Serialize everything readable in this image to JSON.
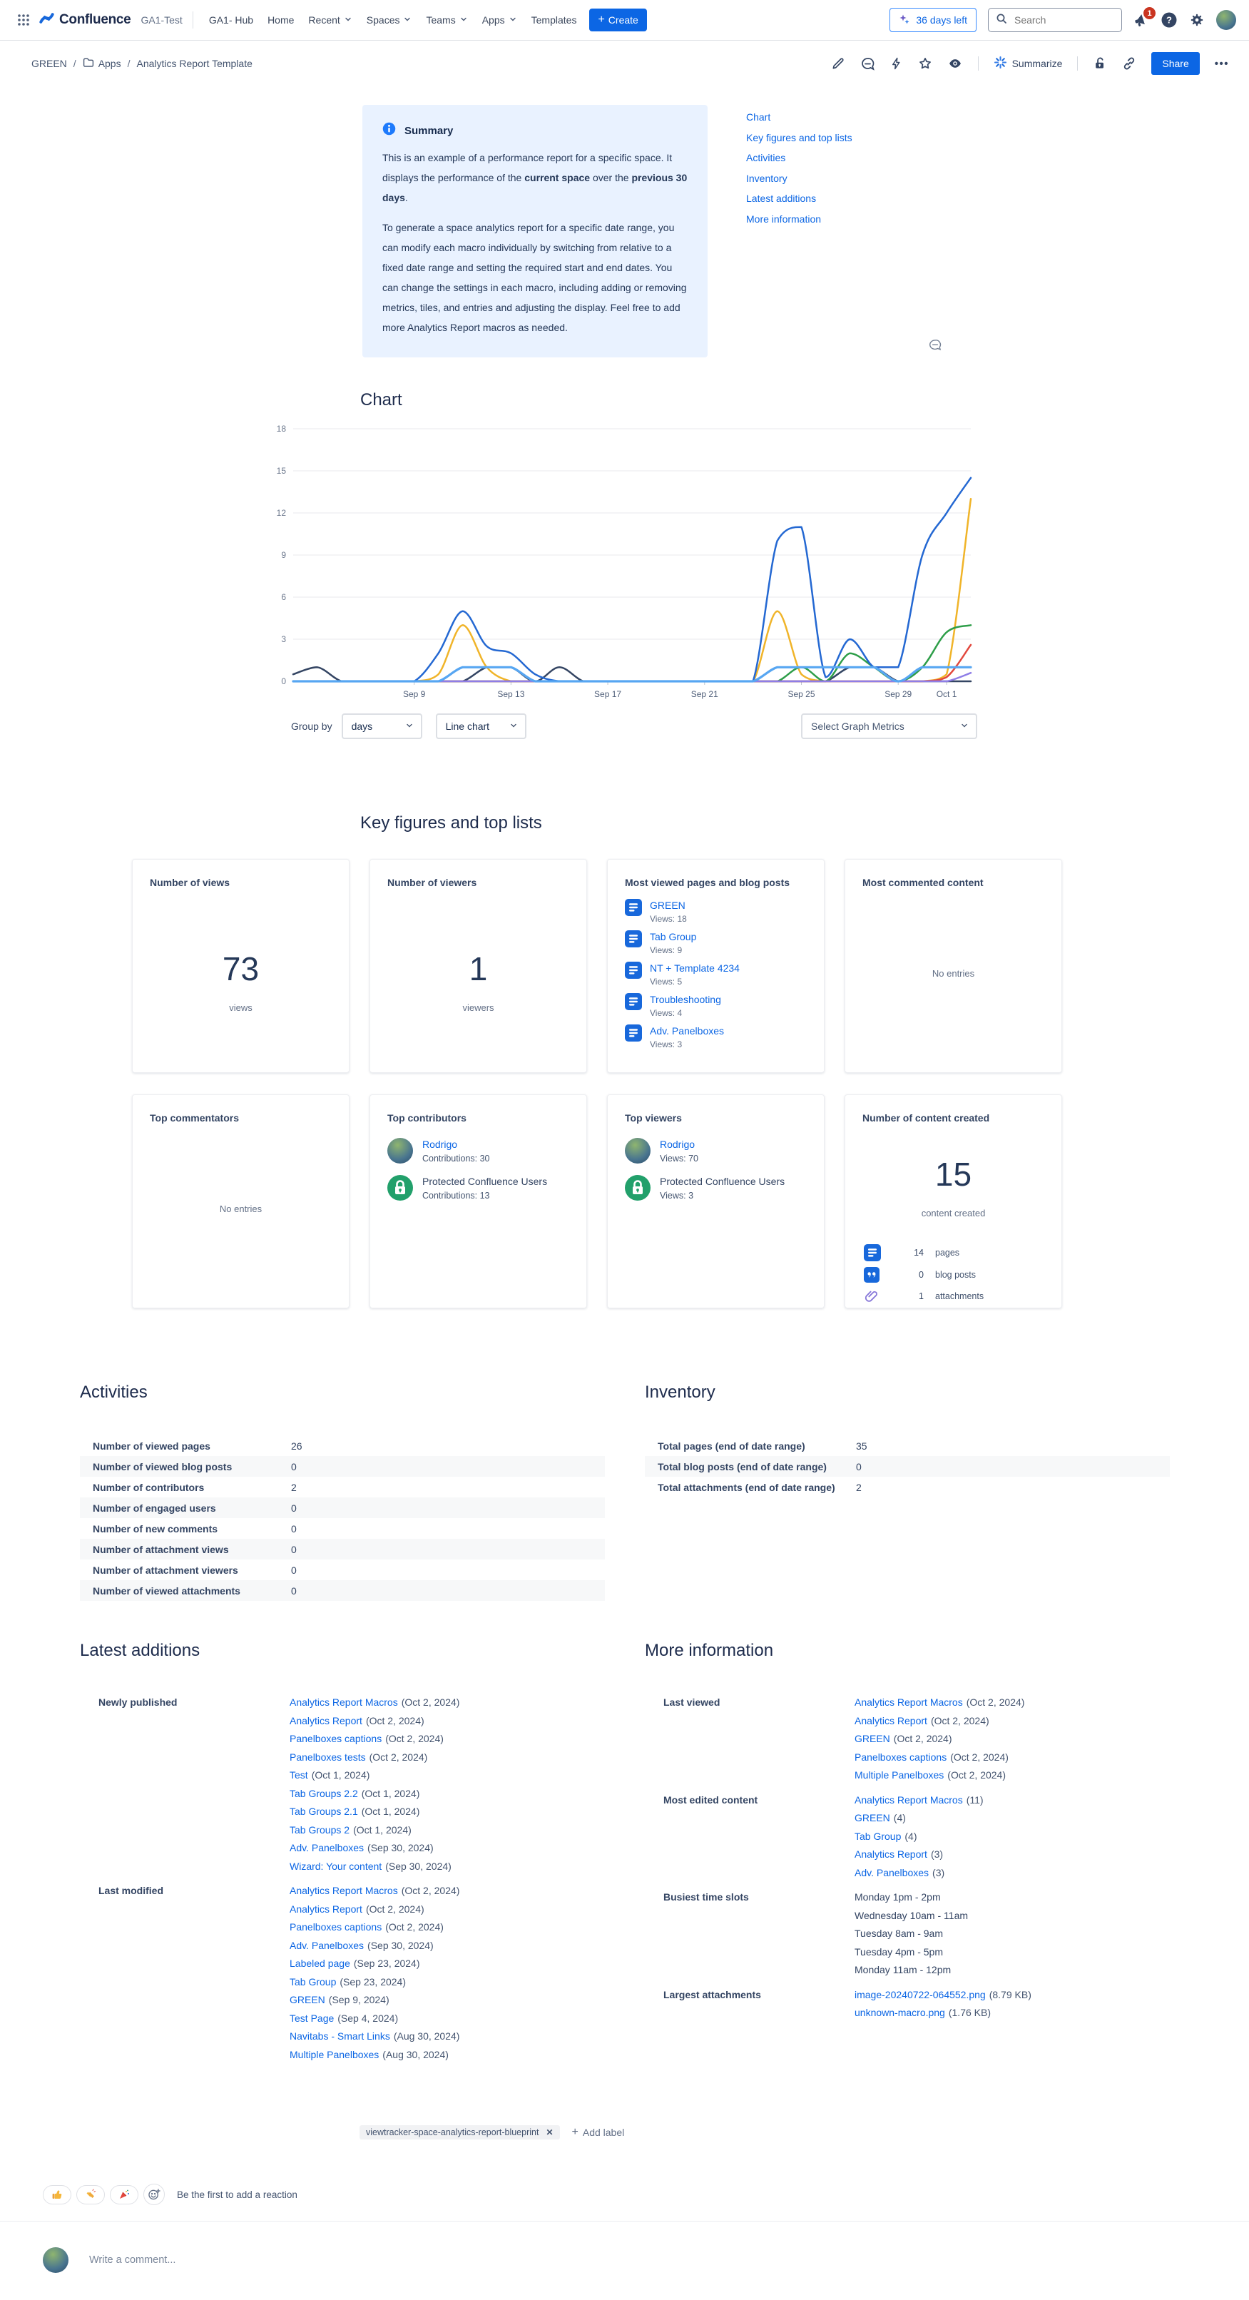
{
  "nav": {
    "product": "Confluence",
    "site": "GA1-Test",
    "items": [
      {
        "label": "GA1- Hub",
        "chevron": false
      },
      {
        "label": "Home",
        "chevron": false
      },
      {
        "label": "Recent",
        "chevron": true
      },
      {
        "label": "Spaces",
        "chevron": true
      },
      {
        "label": "Teams",
        "chevron": true
      },
      {
        "label": "Apps",
        "chevron": true
      },
      {
        "label": "Templates",
        "chevron": false
      }
    ],
    "create_label": "Create",
    "trial_label": "36 days left",
    "search_placeholder": "Search",
    "notification_count": "1"
  },
  "breadcrumb": {
    "items": [
      "GREEN",
      "Apps",
      "Analytics Report Template"
    ]
  },
  "page_actions": {
    "summarize_label": "Summarize",
    "share_label": "Share"
  },
  "summary_panel": {
    "title": "Summary",
    "p1_pre": "This is an example of a performance report for a specific space. It displays the performance of the ",
    "p1_bold1": "current space",
    "p1_mid": " over the ",
    "p1_bold2": "previous 30 days",
    "p1_end": ".",
    "p2": "To generate a space analytics report for a specific date range, you can modify each macro individually by switching from relative to a fixed date range and setting the required start and end dates. You can change the settings in each macro, including adding or removing metrics, tiles, and entries and adjusting the display. Feel free to add more Analytics Report macros as needed."
  },
  "toc": {
    "links": [
      "Chart",
      "Key figures and top lists",
      "Activities",
      "Inventory",
      "Latest additions",
      "More information"
    ]
  },
  "chart_section": {
    "title": "Chart",
    "group_by_label": "Group by",
    "group_by_value": "days",
    "chart_type_value": "Line chart",
    "metrics_placeholder": "Select Graph Metrics"
  },
  "chart_data": {
    "type": "line",
    "x_start": "Sep 4, 2024",
    "x_end": "Oct 2, 2024",
    "x_tick_labels": [
      "Sep 9",
      "Sep 13",
      "Sep 17",
      "Sep 21",
      "Sep 25",
      "Sep 29",
      "Oct 1"
    ],
    "x_tick_indices": [
      5,
      9,
      13,
      17,
      21,
      25,
      27
    ],
    "y_ticks": [
      0,
      3,
      6,
      9,
      12,
      15,
      18
    ],
    "ylim": [
      0,
      18
    ],
    "grid": true,
    "legend": "none",
    "series": [
      {
        "name": "dark-navy",
        "color": "#344563",
        "width": 2.5,
        "values": [
          0.5,
          1,
          0,
          0,
          0,
          0,
          0,
          0,
          1,
          1,
          0,
          1,
          0,
          0,
          0,
          0,
          0,
          0,
          0,
          0,
          0,
          0,
          0,
          1,
          1,
          0,
          0,
          0,
          0
        ]
      },
      {
        "name": "yellow",
        "color": "#F0B429",
        "width": 2.5,
        "values": [
          0,
          0,
          0,
          0,
          0,
          0,
          0.5,
          4,
          1,
          0,
          0,
          0,
          0,
          0,
          0,
          0,
          0,
          0,
          0,
          0,
          5,
          0.5,
          0,
          0,
          0,
          0,
          0,
          0.5,
          13
        ]
      },
      {
        "name": "green",
        "color": "#2E9E49",
        "width": 2.5,
        "values": [
          0,
          0,
          0,
          0,
          0,
          0,
          0,
          0,
          0,
          0,
          0,
          0,
          0,
          0,
          0,
          0,
          0,
          0,
          0,
          0,
          0,
          1,
          0,
          2,
          1,
          0,
          1,
          3.5,
          4
        ]
      },
      {
        "name": "red",
        "color": "#E2483D",
        "width": 2.5,
        "values": [
          0,
          0,
          0,
          0,
          0,
          0,
          0,
          0,
          0,
          0,
          0,
          0,
          0,
          0,
          0,
          0,
          0,
          0,
          0,
          0,
          0,
          0,
          0,
          0,
          0,
          0,
          0,
          0.3,
          2.6
        ]
      },
      {
        "name": "purple",
        "color": "#8F7EE7",
        "width": 2.5,
        "values": [
          0,
          0,
          0,
          0,
          0,
          0,
          0,
          0,
          0,
          0,
          0,
          0,
          0,
          0,
          0,
          0,
          0,
          0,
          0,
          0,
          0,
          0,
          0,
          0,
          0,
          0,
          0,
          0,
          0.6
        ]
      },
      {
        "name": "blue",
        "color": "#2468D2",
        "width": 2.5,
        "values": [
          0,
          0,
          0,
          0,
          0,
          0,
          2,
          5,
          2.5,
          2,
          0.5,
          0,
          0,
          0,
          0,
          0,
          0,
          0,
          0,
          0,
          10,
          11,
          0.3,
          3,
          1,
          1,
          9,
          12,
          14.5
        ]
      },
      {
        "name": "light-blue",
        "color": "#57A6F2",
        "width": 3.2,
        "values": [
          0,
          0,
          0,
          0,
          0,
          0,
          0,
          1,
          1,
          1,
          0,
          0,
          0,
          0,
          0,
          0,
          0,
          0,
          0,
          0,
          1,
          1,
          1,
          1,
          1,
          0,
          1,
          1,
          1
        ]
      }
    ]
  },
  "key_figures": {
    "title": "Key figures and top lists",
    "views": {
      "title": "Number of views",
      "value": "73",
      "unit": "views"
    },
    "viewers": {
      "title": "Number of viewers",
      "value": "1",
      "unit": "viewers"
    },
    "most_viewed": {
      "title": "Most viewed pages and blog posts",
      "items": [
        {
          "title": "GREEN",
          "sub": "Views: 18"
        },
        {
          "title": "Tab Group",
          "sub": "Views: 9"
        },
        {
          "title": "NT + Template 4234",
          "sub": "Views: 5"
        },
        {
          "title": "Troubleshooting",
          "sub": "Views: 4"
        },
        {
          "title": "Adv. Panelboxes",
          "sub": "Views: 3"
        }
      ]
    },
    "most_commented": {
      "title": "Most commented content",
      "empty": "No entries"
    },
    "top_commentators": {
      "title": "Top commentators",
      "empty": "No entries"
    },
    "top_contributors": {
      "title": "Top contributors",
      "entries": [
        {
          "name": "Rodrigo",
          "sub": "Contributions: 30",
          "avatar": "photo",
          "link": true
        },
        {
          "name": "Protected Confluence Users",
          "sub": "Contributions: 13",
          "avatar": "lock",
          "link": false
        }
      ]
    },
    "top_viewers": {
      "title": "Top viewers",
      "entries": [
        {
          "name": "Rodrigo",
          "sub": "Views: 70",
          "avatar": "photo",
          "link": true
        },
        {
          "name": "Protected Confluence Users",
          "sub": "Views: 3",
          "avatar": "lock",
          "link": false
        }
      ]
    },
    "content_created": {
      "title": "Number of content created",
      "value": "15",
      "unit": "content created",
      "breakdown": [
        {
          "icon": "page",
          "count": "14",
          "label": "pages"
        },
        {
          "icon": "blog",
          "count": "0",
          "label": "blog posts"
        },
        {
          "icon": "attachment",
          "count": "1",
          "label": "attachments"
        }
      ]
    }
  },
  "activities": {
    "title": "Activities",
    "rows": [
      {
        "label": "Number of viewed pages",
        "value": "26"
      },
      {
        "label": "Number of viewed blog posts",
        "value": "0"
      },
      {
        "label": "Number of contributors",
        "value": "2"
      },
      {
        "label": "Number of engaged users",
        "value": "0"
      },
      {
        "label": "Number of new comments",
        "value": "0"
      },
      {
        "label": "Number of attachment views",
        "value": "0"
      },
      {
        "label": "Number of attachment viewers",
        "value": "0"
      },
      {
        "label": "Number of viewed attachments",
        "value": "0"
      }
    ]
  },
  "inventory": {
    "title": "Inventory",
    "rows": [
      {
        "label": "Total pages (end of date range)",
        "value": "35"
      },
      {
        "label": "Total blog posts (end of date range)",
        "value": "0"
      },
      {
        "label": "Total attachments (end of date range)",
        "value": "2"
      }
    ]
  },
  "latest_additions": {
    "title": "Latest additions",
    "groups": [
      {
        "label": "Newly published",
        "items": [
          {
            "text": "Analytics Report Macros",
            "suffix": "(Oct 2, 2024)"
          },
          {
            "text": "Analytics Report",
            "suffix": "(Oct 2, 2024)"
          },
          {
            "text": "Panelboxes captions",
            "suffix": "(Oct 2, 2024)"
          },
          {
            "text": "Panelboxes tests",
            "suffix": "(Oct 2, 2024)"
          },
          {
            "text": "Test",
            "suffix": "(Oct 1, 2024)"
          },
          {
            "text": "Tab Groups 2.2",
            "suffix": "(Oct 1, 2024)"
          },
          {
            "text": "Tab Groups 2.1",
            "suffix": "(Oct 1, 2024)"
          },
          {
            "text": "Tab Groups 2",
            "suffix": "(Oct 1, 2024)"
          },
          {
            "text": "Adv. Panelboxes",
            "suffix": "(Sep 30, 2024)"
          },
          {
            "text": "Wizard: Your content",
            "suffix": "(Sep 30, 2024)"
          }
        ]
      },
      {
        "label": "Last modified",
        "items": [
          {
            "text": "Analytics Report Macros",
            "suffix": "(Oct 2, 2024)"
          },
          {
            "text": "Analytics Report",
            "suffix": "(Oct 2, 2024)"
          },
          {
            "text": "Panelboxes captions",
            "suffix": "(Oct 2, 2024)"
          },
          {
            "text": "Adv. Panelboxes",
            "suffix": "(Sep 30, 2024)"
          },
          {
            "text": "Labeled page",
            "suffix": "(Sep 23, 2024)"
          },
          {
            "text": "Tab Group",
            "suffix": "(Sep 23, 2024)"
          },
          {
            "text": "GREEN",
            "suffix": "(Sep 9, 2024)"
          },
          {
            "text": "Test Page",
            "suffix": "(Sep 4, 2024)"
          },
          {
            "text": "Navitabs - Smart Links",
            "suffix": "(Aug 30, 2024)"
          },
          {
            "text": "Multiple Panelboxes",
            "suffix": "(Aug 30, 2024)"
          }
        ]
      }
    ]
  },
  "more_information": {
    "title": "More information",
    "groups": [
      {
        "label": "Last viewed",
        "items": [
          {
            "text": "Analytics Report Macros",
            "suffix": "(Oct 2, 2024)"
          },
          {
            "text": "Analytics Report",
            "suffix": "(Oct 2, 2024)"
          },
          {
            "text": "GREEN",
            "suffix": "(Oct 2, 2024)"
          },
          {
            "text": "Panelboxes captions",
            "suffix": "(Oct 2, 2024)"
          },
          {
            "text": "Multiple Panelboxes",
            "suffix": "(Oct 2, 2024)"
          }
        ]
      },
      {
        "label": "Most edited content",
        "items": [
          {
            "text": "Analytics Report Macros",
            "suffix": "(11)"
          },
          {
            "text": "GREEN",
            "suffix": "(4)"
          },
          {
            "text": "Tab Group",
            "suffix": "(4)"
          },
          {
            "text": "Analytics Report",
            "suffix": "(3)"
          },
          {
            "text": "Adv. Panelboxes",
            "suffix": "(3)"
          }
        ]
      },
      {
        "label": "Busiest time slots",
        "items": [
          {
            "text": "Monday 1pm - 2pm",
            "plain": true
          },
          {
            "text": "Wednesday 10am - 11am",
            "plain": true
          },
          {
            "text": "Tuesday 8am - 9am",
            "plain": true
          },
          {
            "text": "Tuesday 4pm - 5pm",
            "plain": true
          },
          {
            "text": "Monday 11am - 12pm",
            "plain": true
          }
        ]
      },
      {
        "label": "Largest attachments",
        "items": [
          {
            "text": "image-20240722-064552.png",
            "suffix": "(8.79 KB)"
          },
          {
            "text": "unknown-macro.png",
            "suffix": "(1.76 KB)"
          }
        ]
      }
    ]
  },
  "footer": {
    "label_chip": "viewtracker-space-analytics-report-blueprint",
    "add_label": "Add label",
    "reaction_hint": "Be the first to add a reaction",
    "comment_placeholder": "Write a comment..."
  }
}
